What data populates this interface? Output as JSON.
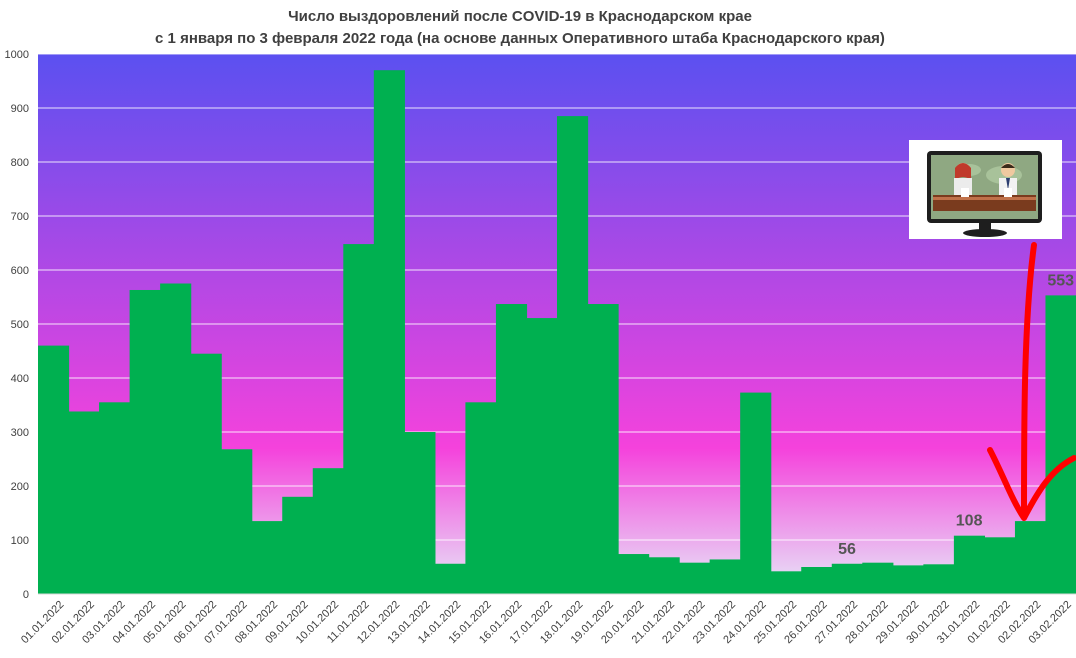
{
  "chart_data": {
    "type": "bar",
    "title": "Число выздоровлений после COVID-19 в Краснодарском крае",
    "subtitle": "с 1 января по 3 февраля 2022 года (на основе данных Оперативного штаба Краснодарского края)",
    "xlabel": "",
    "ylabel": "",
    "ylim": [
      0,
      1000
    ],
    "yticks": [
      0,
      100,
      200,
      300,
      400,
      500,
      600,
      700,
      800,
      900,
      1000
    ],
    "grid": true,
    "legend": "none",
    "categories": [
      "01.01.2022",
      "02.01.2022",
      "03.01.2022",
      "04.01.2022",
      "05.01.2022",
      "06.01.2022",
      "07.01.2022",
      "08.01.2022",
      "09.01.2022",
      "10.01.2022",
      "11.01.2022",
      "12.01.2022",
      "13.01.2022",
      "14.01.2022",
      "15.01.2022",
      "16.01.2022",
      "17.01.2022",
      "18.01.2022",
      "19.01.2022",
      "20.01.2022",
      "21.01.2022",
      "22.01.2022",
      "23.01.2022",
      "24.01.2022",
      "25.01.2022",
      "26.01.2022",
      "27.01.2022",
      "28.01.2022",
      "29.01.2022",
      "30.01.2022",
      "31.01.2022",
      "01.02.2022",
      "02.02.2022",
      "03.02.2022"
    ],
    "values": [
      460,
      338,
      355,
      563,
      575,
      445,
      268,
      135,
      180,
      233,
      648,
      970,
      300,
      56,
      355,
      537,
      511,
      885,
      537,
      74,
      68,
      58,
      64,
      373,
      42,
      50,
      56,
      58,
      53,
      55,
      108,
      105,
      135,
      553
    ],
    "data_labels": [
      {
        "category": "27.01.2022",
        "text": "56"
      },
      {
        "category": "31.01.2022",
        "text": "108"
      },
      {
        "category": "03.02.2022",
        "text": "553"
      }
    ],
    "colors": {
      "bar": "#00b050",
      "grid": "#ffffff",
      "bg_top": "#5b50f0",
      "bg_mid": "#f542dc",
      "bg_bottom": "#e6eaf8",
      "arrow": "#ff0000"
    },
    "annotation_icon": "tv-news-anchors-icon"
  }
}
